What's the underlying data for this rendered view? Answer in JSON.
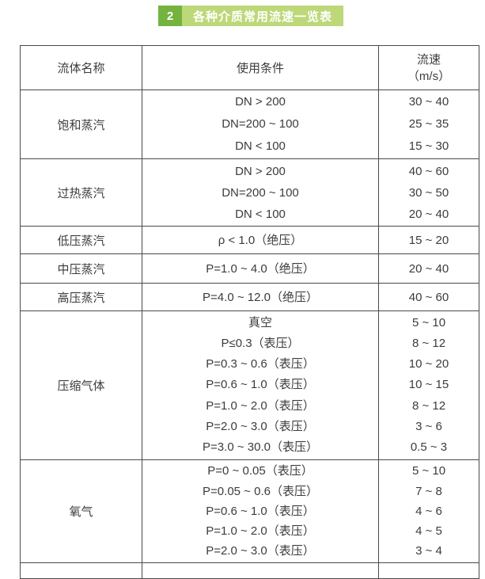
{
  "header": {
    "badge_number": "2",
    "title": "各种介质常用流速一览表",
    "badge_color": "#74b33e",
    "bar_color": "#bcd878",
    "text_color": "#ffffff"
  },
  "table": {
    "border_color": "#4a4a4a",
    "text_color": "#3c3c3c",
    "columns": {
      "fluid": "流体名称",
      "condition": "使用条件",
      "velocity_line1": "流速",
      "velocity_line2": "（m/s）"
    },
    "groups": [
      {
        "fluid": "饱和蒸汽",
        "rows": [
          {
            "condition": "DN > 200",
            "velocity": "30 ~ 40"
          },
          {
            "condition": "DN=200 ~ 100",
            "velocity": "25 ~ 35"
          },
          {
            "condition": "DN < 100",
            "velocity": "15 ~ 30"
          }
        ]
      },
      {
        "fluid": "过热蒸汽",
        "rows": [
          {
            "condition": "DN > 200",
            "velocity": "40 ~ 60"
          },
          {
            "condition": "DN=200 ~ 100",
            "velocity": "30 ~ 50"
          },
          {
            "condition": "DN < 100",
            "velocity": "20 ~ 40"
          }
        ]
      },
      {
        "fluid": "低压蒸汽",
        "rows": [
          {
            "condition": "ρ < 1.0（绝压）",
            "velocity": "15 ~ 20"
          }
        ]
      },
      {
        "fluid": "中压蒸汽",
        "rows": [
          {
            "condition": "P=1.0 ~ 4.0（绝压）",
            "velocity": "20 ~ 40"
          }
        ]
      },
      {
        "fluid": "高压蒸汽",
        "rows": [
          {
            "condition": "P=4.0 ~ 12.0（绝压）",
            "velocity": "40 ~ 60"
          }
        ]
      },
      {
        "fluid": "压缩气体",
        "rows": [
          {
            "condition": "真空",
            "velocity": "5 ~ 10"
          },
          {
            "condition": "P≤0.3（表压）",
            "velocity": "8 ~ 12"
          },
          {
            "condition": "P=0.3 ~ 0.6（表压）",
            "velocity": "10 ~ 20"
          },
          {
            "condition": "P=0.6 ~ 1.0（表压）",
            "velocity": "10 ~ 15"
          },
          {
            "condition": "P=1.0 ~ 2.0（表压）",
            "velocity": "8 ~ 12"
          },
          {
            "condition": "P=2.0 ~ 3.0（表压）",
            "velocity": "3 ~ 6"
          },
          {
            "condition": "P=3.0 ~ 30.0（表压）",
            "velocity": "0.5 ~ 3"
          }
        ]
      },
      {
        "fluid": "氧气",
        "rows": [
          {
            "condition": "P=0 ~ 0.05（表压）",
            "velocity": "5 ~ 10"
          },
          {
            "condition": "P=0.05 ~ 0.6（表压）",
            "velocity": "7 ~ 8"
          },
          {
            "condition": "P=0.6 ~ 1.0（表压）",
            "velocity": "4 ~ 6"
          },
          {
            "condition": "P=1.0 ~ 2.0（表压）",
            "velocity": "4 ~ 5"
          },
          {
            "condition": "P=2.0 ~ 3.0（表压）",
            "velocity": "3 ~ 4"
          }
        ]
      }
    ]
  }
}
